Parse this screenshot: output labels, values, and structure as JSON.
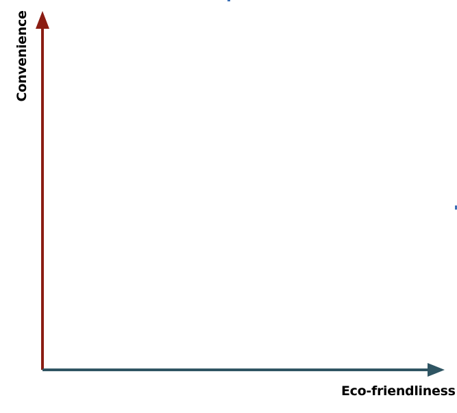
{
  "diagram": {
    "y_axis": {
      "label": "Convenience",
      "color": "#8b1d13"
    },
    "x_axis": {
      "label": "Eco-friendliness",
      "color": "#2f5563"
    },
    "artifact_color": "#3b6fb6"
  }
}
